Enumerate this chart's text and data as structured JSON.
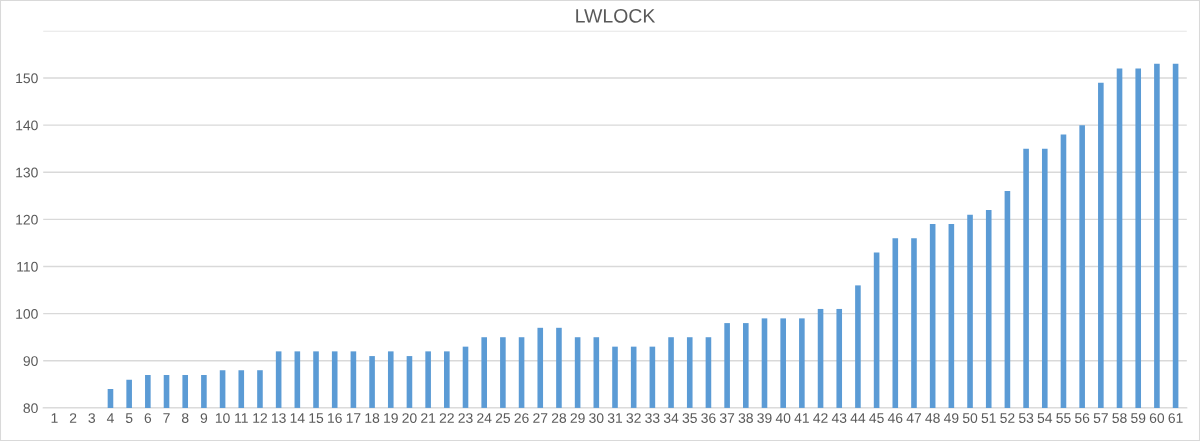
{
  "chart_data": {
    "type": "bar",
    "title": "LWLOCK",
    "categories": [
      "1",
      "2",
      "3",
      "4",
      "5",
      "6",
      "7",
      "8",
      "9",
      "10",
      "11",
      "12",
      "13",
      "14",
      "15",
      "16",
      "17",
      "18",
      "19",
      "20",
      "21",
      "22",
      "23",
      "24",
      "25",
      "26",
      "27",
      "28",
      "29",
      "30",
      "31",
      "32",
      "33",
      "34",
      "35",
      "36",
      "37",
      "38",
      "39",
      "40",
      "41",
      "42",
      "43",
      "44",
      "45",
      "46",
      "47",
      "48",
      "49",
      "50",
      "51",
      "52",
      "53",
      "54",
      "55",
      "56",
      "57",
      "58",
      "59",
      "60",
      "61"
    ],
    "values": [
      null,
      null,
      null,
      84,
      86,
      87,
      87,
      87,
      87,
      88,
      88,
      88,
      92,
      92,
      92,
      92,
      92,
      91,
      92,
      91,
      92,
      92,
      93,
      95,
      95,
      95,
      97,
      97,
      95,
      95,
      93,
      93,
      93,
      95,
      95,
      95,
      98,
      98,
      99,
      99,
      99,
      101,
      101,
      106,
      113,
      116,
      116,
      119,
      119,
      121,
      122,
      126,
      135,
      135,
      138,
      140,
      149,
      152,
      152,
      153,
      153
    ],
    "color": "#5b9bd5",
    "ylim": [
      80,
      160
    ],
    "yticks": [
      80,
      90,
      100,
      110,
      120,
      130,
      140,
      150,
      {
        "value": 160,
        "label": null
      }
    ],
    "grid": "y"
  }
}
